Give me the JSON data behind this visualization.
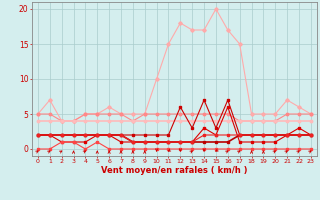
{
  "x": [
    0,
    1,
    2,
    3,
    4,
    5,
    6,
    7,
    8,
    9,
    10,
    11,
    12,
    13,
    14,
    15,
    16,
    17,
    18,
    19,
    20,
    21,
    22,
    23
  ],
  "series": [
    {
      "name": "light_pink_high",
      "color": "#ffaaaa",
      "linewidth": 0.8,
      "marker": "D",
      "markersize": 1.8,
      "values": [
        5,
        7,
        4,
        4,
        5,
        5,
        6,
        5,
        5,
        5,
        10,
        15,
        18,
        17,
        17,
        20,
        17,
        15,
        5,
        5,
        5,
        7,
        6,
        5
      ]
    },
    {
      "name": "medium_pink",
      "color": "#ff8888",
      "linewidth": 0.8,
      "marker": "o",
      "markersize": 1.8,
      "values": [
        5,
        5,
        4,
        4,
        5,
        5,
        5,
        5,
        4,
        5,
        5,
        5,
        5,
        5,
        5,
        5,
        5,
        4,
        4,
        4,
        4,
        5,
        5,
        5
      ]
    },
    {
      "name": "medium_pink2",
      "color": "#ffbbbb",
      "linewidth": 1.2,
      "marker": "o",
      "markersize": 1.8,
      "values": [
        4,
        4,
        4,
        4,
        4,
        4,
        4,
        4,
        4,
        4,
        4,
        4,
        4,
        4,
        4,
        4,
        4,
        4,
        4,
        4,
        4,
        4,
        4,
        4
      ]
    },
    {
      "name": "dark_red_main",
      "color": "#cc0000",
      "linewidth": 0.8,
      "marker": "s",
      "markersize": 1.8,
      "values": [
        2,
        2,
        2,
        2,
        2,
        2,
        2,
        2,
        2,
        2,
        2,
        2,
        6,
        3,
        7,
        3,
        7,
        2,
        2,
        2,
        2,
        2,
        2,
        2
      ]
    },
    {
      "name": "dark_red_low",
      "color": "#dd0000",
      "linewidth": 0.8,
      "marker": "s",
      "markersize": 1.8,
      "values": [
        2,
        2,
        1,
        1,
        1,
        2,
        2,
        1,
        1,
        1,
        1,
        1,
        1,
        1,
        3,
        2,
        6,
        1,
        1,
        1,
        1,
        2,
        3,
        2
      ]
    },
    {
      "name": "dark_red_flat",
      "color": "#bb0000",
      "linewidth": 1.2,
      "marker": "s",
      "markersize": 1.5,
      "values": [
        2,
        2,
        2,
        2,
        2,
        2,
        2,
        2,
        1,
        1,
        1,
        1,
        1,
        1,
        1,
        1,
        1,
        2,
        2,
        2,
        2,
        2,
        2,
        2
      ]
    },
    {
      "name": "dark_red_flat2",
      "color": "#ee2222",
      "linewidth": 0.8,
      "marker": "s",
      "markersize": 1.5,
      "values": [
        2,
        2,
        2,
        2,
        2,
        2,
        2,
        2,
        1,
        1,
        1,
        1,
        1,
        1,
        2,
        2,
        2,
        2,
        2,
        2,
        2,
        2,
        2,
        2
      ]
    },
    {
      "name": "red_zero",
      "color": "#ff4444",
      "linewidth": 0.8,
      "marker": "s",
      "markersize": 1.5,
      "values": [
        0,
        0,
        1,
        1,
        0,
        1,
        0,
        0,
        0,
        0,
        0,
        0,
        0,
        0,
        0,
        0,
        0,
        0,
        0,
        0,
        0,
        0,
        0,
        0
      ]
    }
  ],
  "xlim": [
    -0.5,
    23.5
  ],
  "ylim": [
    -1,
    21
  ],
  "yticks": [
    0,
    5,
    10,
    15,
    20
  ],
  "xticks": [
    0,
    1,
    2,
    3,
    4,
    5,
    6,
    7,
    8,
    9,
    10,
    11,
    12,
    13,
    14,
    15,
    16,
    17,
    18,
    19,
    20,
    21,
    22,
    23
  ],
  "xlabel": "Vent moyen/en rafales ( km/h )",
  "bg_color": "#d4eeee",
  "grid_color": "#aacccc",
  "tick_color": "#cc0000",
  "label_color": "#cc0000",
  "axis_color": "#888888",
  "arrow_angles_deg": [
    45,
    45,
    45,
    0,
    45,
    0,
    0,
    0,
    0,
    0,
    180,
    225,
    180,
    45,
    180,
    225,
    45,
    45,
    0,
    0,
    45,
    45,
    45,
    45
  ]
}
